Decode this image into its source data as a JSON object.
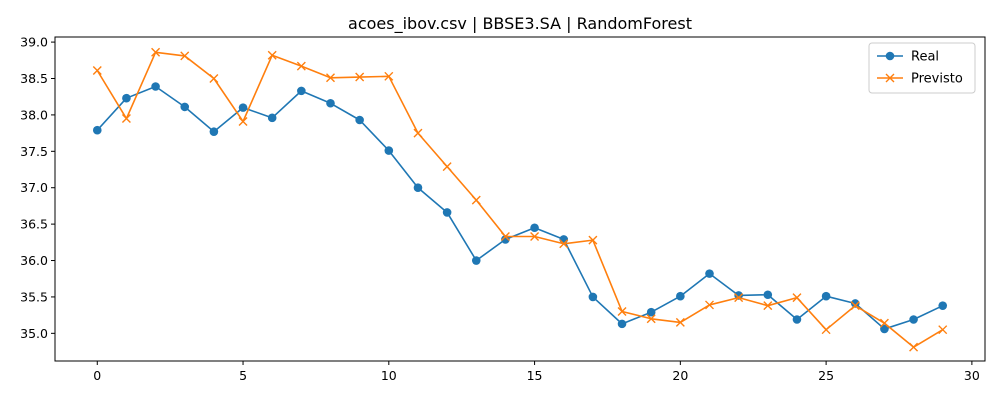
{
  "chart_data": {
    "type": "line",
    "title": "acoes_ibov.csv | BBSE3.SA | RandomForest",
    "xlabel": "",
    "ylabel": "",
    "xlim": [
      -1.45,
      30.45
    ],
    "ylim": [
      34.62,
      39.07
    ],
    "xticks": [
      0,
      5,
      10,
      15,
      20,
      25,
      30
    ],
    "yticks": [
      35.0,
      35.5,
      36.0,
      36.5,
      37.0,
      37.5,
      38.0,
      38.5,
      39.0
    ],
    "grid": false,
    "legend_position": "top-right",
    "x": [
      0,
      1,
      2,
      3,
      4,
      5,
      6,
      7,
      8,
      9,
      10,
      11,
      12,
      13,
      14,
      15,
      16,
      17,
      18,
      19,
      20,
      21,
      22,
      23,
      24,
      25,
      26,
      27,
      28,
      29
    ],
    "series": [
      {
        "name": "Real",
        "color": "#1f77b4",
        "marker": "circle",
        "values": [
          37.79,
          38.23,
          38.39,
          38.11,
          37.77,
          38.1,
          37.96,
          38.33,
          38.16,
          37.93,
          37.51,
          37.0,
          36.66,
          36.0,
          36.29,
          36.45,
          36.29,
          35.5,
          35.13,
          35.29,
          35.51,
          35.82,
          35.52,
          35.53,
          35.19,
          35.51,
          35.41,
          35.06,
          35.19,
          35.38
        ]
      },
      {
        "name": "Previsto",
        "color": "#ff7f0e",
        "marker": "x",
        "values": [
          38.61,
          37.95,
          38.86,
          38.81,
          38.5,
          37.91,
          38.82,
          38.67,
          38.51,
          38.52,
          38.53,
          37.75,
          37.29,
          36.83,
          36.33,
          36.33,
          36.23,
          36.28,
          35.3,
          35.2,
          35.15,
          35.39,
          35.49,
          35.38,
          35.49,
          35.05,
          35.38,
          35.14,
          34.81,
          35.05
        ]
      }
    ]
  }
}
